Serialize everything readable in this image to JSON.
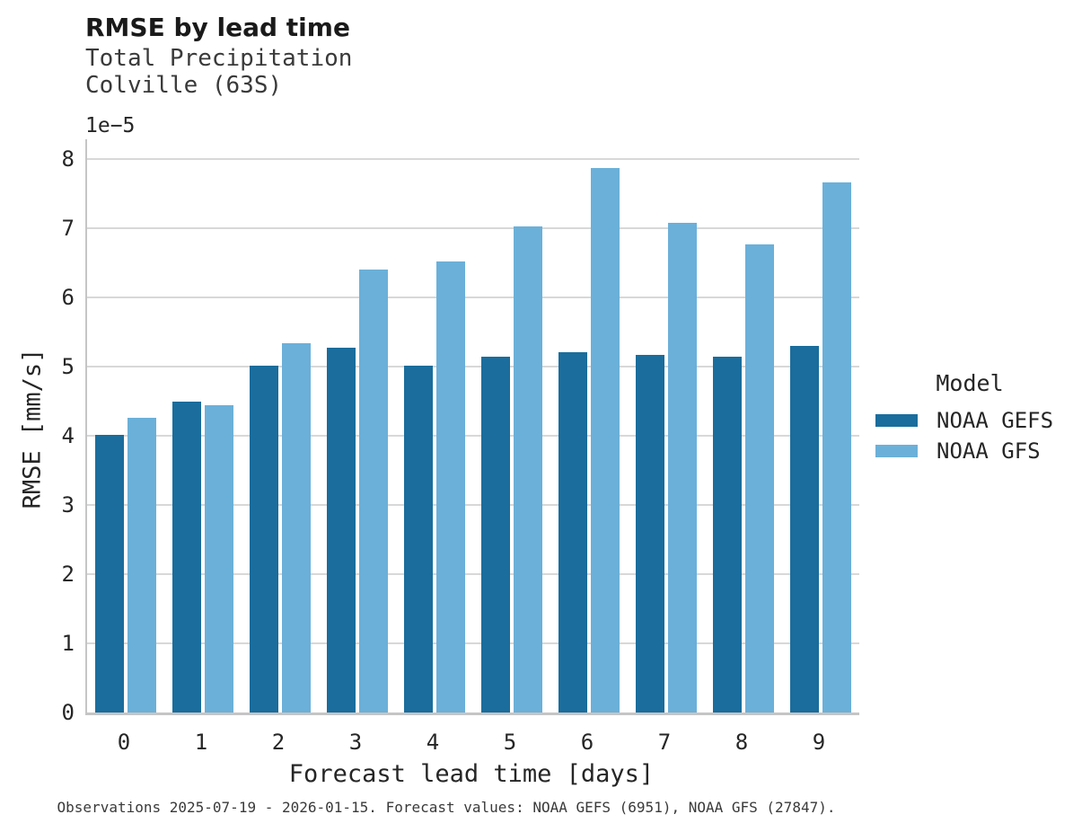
{
  "chart_data": {
    "type": "bar",
    "title": "RMSE by lead time",
    "subtitle": [
      "Total Precipitation",
      "Colville (63S)"
    ],
    "offset_text": "1e−5",
    "xlabel": "Forecast lead time [days]",
    "ylabel": "RMSE [mm/s]",
    "value_scale": "1e-5",
    "categories": [
      "0",
      "1",
      "2",
      "3",
      "4",
      "5",
      "6",
      "7",
      "8",
      "9"
    ],
    "yticks": [
      0,
      1,
      2,
      3,
      4,
      5,
      6,
      7,
      8
    ],
    "ylim": [
      0,
      8.29
    ],
    "grid": true,
    "legend": {
      "title": "Model",
      "position": "right"
    },
    "series": [
      {
        "name": "NOAA GEFS",
        "color": "#1a6d9c",
        "values": [
          4.01,
          4.5,
          5.02,
          5.27,
          5.01,
          5.14,
          5.21,
          5.17,
          5.14,
          5.3
        ]
      },
      {
        "name": "NOAA GFS",
        "color": "#6bb0d9",
        "values": [
          4.26,
          4.45,
          5.34,
          6.4,
          6.52,
          7.03,
          7.87,
          7.08,
          6.77,
          7.67
        ]
      }
    ],
    "caption": "Observations 2025-07-19 - 2026-01-15. Forecast values: NOAA GEFS (6951), NOAA GFS (27847)."
  }
}
